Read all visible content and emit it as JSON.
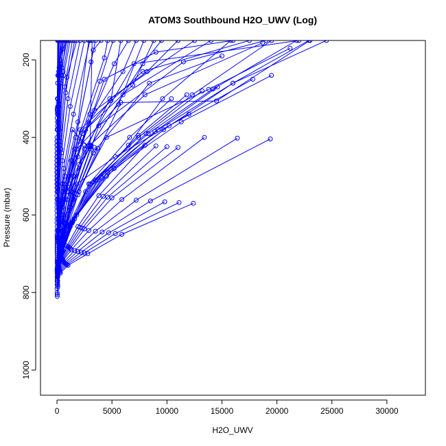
{
  "chart_data": {
    "type": "line",
    "title": "ATOM3 Southbound H2O_UWV (Log)",
    "xlabel": "H2O_UWV",
    "ylabel": "Pressure (mbar)",
    "xlim": [
      -1500,
      33500
    ],
    "ylim": [
      1065,
      150
    ],
    "y_inverted": true,
    "grid": false,
    "legend": "none",
    "x_ticks": [
      0,
      5000,
      10000,
      15000,
      20000,
      25000,
      30000
    ],
    "y_ticks": [
      200,
      400,
      600,
      800,
      1000
    ],
    "series_color": "#0000ff",
    "marker": "open-circle",
    "series": [
      {
        "x": [
          30,
          60,
          250,
          900,
          3000,
          8000,
          18700
        ],
        "y": [
          805,
          770,
          700,
          560,
          420,
          290,
          156
        ]
      },
      {
        "x": [
          20,
          150,
          600,
          1800,
          5300,
          12000
        ],
        "y": [
          810,
          740,
          640,
          520,
          450,
          340
        ]
      },
      {
        "x": [
          15,
          100,
          400,
          1500,
          4500,
          13800,
          21200
        ],
        "y": [
          800,
          745,
          670,
          560,
          400,
          276,
          170
        ]
      },
      {
        "x": [
          10,
          80,
          300,
          1100,
          3300,
          8400,
          15000
        ],
        "y": [
          790,
          750,
          690,
          590,
          440,
          260,
          190
        ]
      },
      {
        "x": [
          25,
          120,
          500,
          2000,
          5800,
          14500,
          23000
        ],
        "y": [
          780,
          730,
          650,
          540,
          310,
          306,
          150
        ]
      },
      {
        "x": [
          20,
          200,
          800,
          2500,
          7000,
          22000
        ],
        "y": [
          770,
          720,
          620,
          430,
          210,
          150
        ]
      },
      {
        "x": [
          30,
          300,
          1200,
          3800,
          11500,
          19000
        ],
        "y": [
          760,
          700,
          580,
          370,
          205,
          150
        ]
      },
      {
        "x": [
          40,
          250,
          700,
          2100,
          7800,
          17500
        ],
        "y": [
          750,
          680,
          560,
          380,
          230,
          150
        ]
      },
      {
        "x": [
          35,
          180,
          600,
          1900,
          4300,
          9000,
          16000
        ],
        "y": [
          755,
          710,
          600,
          450,
          250,
          180,
          150
        ]
      },
      {
        "x": [
          50,
          400,
          1500,
          4800,
          12500
        ],
        "y": [
          745,
          660,
          500,
          300,
          150
        ]
      },
      {
        "x": [
          60,
          500,
          2000,
          6000,
          14000
        ],
        "y": [
          740,
          640,
          470,
          290,
          150
        ]
      },
      {
        "x": [
          45,
          350,
          1200,
          3000,
          8200,
          11000
        ],
        "y": [
          730,
          650,
          520,
          340,
          230,
          150
        ]
      },
      {
        "x": [
          20,
          150,
          900,
          3100,
          7800,
          9500
        ],
        "y": [
          725,
          660,
          540,
          420,
          210,
          150
        ]
      },
      {
        "x": [
          30,
          120,
          600,
          2600,
          6900,
          8800
        ],
        "y": [
          720,
          670,
          560,
          380,
          265,
          150
        ]
      },
      {
        "x": [
          25,
          100,
          500,
          1800,
          5600,
          7900
        ],
        "y": [
          715,
          660,
          580,
          430,
          315,
          150
        ]
      },
      {
        "x": [
          35,
          200,
          800,
          2900,
          6000,
          7200
        ],
        "y": [
          710,
          640,
          530,
          360,
          230,
          150
        ]
      },
      {
        "x": [
          40,
          250,
          1100,
          3400,
          5200,
          6500
        ],
        "y": [
          705,
          620,
          500,
          330,
          210,
          150
        ]
      },
      {
        "x": [
          30,
          180,
          700,
          2300,
          4900,
          5800
        ],
        "y": [
          700,
          630,
          520,
          390,
          305,
          150
        ]
      },
      {
        "x": [
          25,
          150,
          600,
          2000,
          3900,
          5100
        ],
        "y": [
          695,
          640,
          560,
          410,
          255,
          150
        ]
      },
      {
        "x": [
          20,
          120,
          450,
          1600,
          4300,
          4600
        ],
        "y": [
          690,
          650,
          580,
          430,
          195,
          150
        ]
      },
      {
        "x": [
          15,
          100,
          400,
          1300,
          3300,
          4000
        ],
        "y": [
          685,
          640,
          570,
          460,
          175,
          150
        ]
      },
      {
        "x": [
          25,
          160,
          550,
          1700,
          3100,
          3500
        ],
        "y": [
          680,
          620,
          540,
          400,
          205,
          150
        ]
      },
      {
        "x": [
          20,
          130,
          500,
          1400,
          3000,
          3200
        ],
        "y": [
          675,
          610,
          520,
          380,
          430,
          150
        ]
      },
      {
        "x": [
          30,
          200,
          700,
          1900,
          2900
        ],
        "y": [
          670,
          600,
          500,
          360,
          150
        ]
      },
      {
        "x": [
          25,
          180,
          600,
          1500,
          3000
        ],
        "y": [
          665,
          590,
          480,
          340,
          150
        ]
      },
      {
        "x": [
          20,
          150,
          500,
          1200,
          2500
        ],
        "y": [
          660,
          580,
          460,
          320,
          150
        ]
      },
      {
        "x": [
          15,
          120,
          400,
          1000,
          2100
        ],
        "y": [
          655,
          570,
          440,
          300,
          150
        ]
      },
      {
        "x": [
          10,
          100,
          350,
          900,
          1800
        ],
        "y": [
          650,
          560,
          430,
          245,
          150
        ]
      },
      {
        "x": [
          10,
          90,
          300,
          800,
          1600
        ],
        "y": [
          640,
          540,
          420,
          285,
          150
        ]
      },
      {
        "x": [
          15,
          80,
          250,
          700,
          1400
        ],
        "y": [
          630,
          530,
          410,
          270,
          150
        ]
      },
      {
        "x": [
          10,
          70,
          220,
          600,
          1200
        ],
        "y": [
          620,
          520,
          400,
          240,
          150
        ]
      },
      {
        "x": [
          10,
          60,
          200,
          550,
          1050
        ],
        "y": [
          610,
          510,
          380,
          230,
          150
        ]
      },
      {
        "x": [
          10,
          50,
          180,
          500,
          1000
        ],
        "y": [
          600,
          500,
          370,
          172,
          150
        ]
      },
      {
        "x": [
          5,
          40,
          150,
          450,
          900
        ],
        "y": [
          590,
          490,
          360,
          220,
          150
        ]
      },
      {
        "x": [
          5,
          30,
          120,
          400,
          800
        ],
        "y": [
          580,
          480,
          340,
          240,
          150
        ]
      },
      {
        "x": [
          5,
          30,
          100,
          350,
          700
        ],
        "y": [
          570,
          470,
          330,
          210,
          150
        ]
      },
      {
        "x": [
          5,
          25,
          80,
          300,
          600
        ],
        "y": [
          560,
          460,
          320,
          200,
          150
        ]
      },
      {
        "x": [
          5,
          20,
          70,
          250,
          500
        ],
        "y": [
          550,
          450,
          320,
          210,
          150
        ]
      },
      {
        "x": [
          5,
          20,
          60,
          200,
          400
        ],
        "y": [
          540,
          440,
          330,
          220,
          150
        ]
      },
      {
        "x": [
          5,
          15,
          50,
          160,
          300
        ],
        "y": [
          530,
          430,
          335,
          230,
          150
        ]
      },
      {
        "x": [
          0,
          10,
          40,
          120,
          200
        ],
        "y": [
          520,
          420,
          340,
          240,
          150
        ]
      },
      {
        "x": [
          0,
          10,
          30,
          80,
          150
        ],
        "y": [
          510,
          410,
          325,
          240,
          150
        ]
      },
      {
        "x": [
          0,
          10,
          20,
          60,
          100
        ],
        "y": [
          500,
          420,
          350,
          260,
          150
        ]
      },
      {
        "x": [
          0,
          5,
          15,
          40,
          80
        ],
        "y": [
          490,
          440,
          380,
          300,
          150
        ]
      },
      {
        "x": [
          0,
          5,
          10,
          30,
          60
        ],
        "y": [
          480,
          450,
          400,
          330,
          150
        ]
      },
      {
        "x": [
          20,
          200,
          900,
          2600,
          6500,
          9600,
          15800
        ],
        "y": [
          760,
          720,
          650,
          540,
          420,
          300,
          150
        ]
      },
      {
        "x": [
          30,
          250,
          1000,
          3000,
          7400,
          12300,
          19500
        ],
        "y": [
          765,
          715,
          640,
          520,
          400,
          290,
          150
        ]
      },
      {
        "x": [
          40,
          300,
          1200,
          3500,
          8300,
          14200,
          21800
        ],
        "y": [
          770,
          710,
          630,
          510,
          390,
          275,
          150
        ]
      },
      {
        "x": [
          50,
          350,
          1400,
          4000,
          9200,
          16000,
          24500
        ],
        "y": [
          775,
          705,
          620,
          500,
          380,
          260,
          150
        ]
      },
      {
        "x": [
          60,
          400,
          1600,
          4600,
          10200,
          17800
        ],
        "y": [
          780,
          700,
          610,
          490,
          370,
          250
        ]
      },
      {
        "x": [
          70,
          450,
          1800,
          5200,
          11300,
          19500
        ],
        "y": [
          785,
          695,
          600,
          480,
          360,
          240
        ]
      },
      {
        "x": [
          35,
          300,
          1000,
          2900,
          6600,
          10400
        ],
        "y": [
          750,
          700,
          630,
          520,
          400,
          300
        ]
      },
      {
        "x": [
          45,
          350,
          1150,
          3300,
          7400,
          11800
        ],
        "y": [
          752,
          698,
          625,
          515,
          395,
          290
        ]
      },
      {
        "x": [
          55,
          420,
          1300,
          3700,
          8100,
          13200
        ],
        "y": [
          754,
          696,
          620,
          510,
          390,
          280
        ]
      },
      {
        "x": [
          65,
          500,
          1450,
          4100,
          8900,
          14600
        ],
        "y": [
          756,
          694,
          615,
          505,
          385,
          270
        ]
      },
      {
        "x": [
          75,
          580,
          1600,
          4500,
          9700,
          16000,
          22900
        ],
        "y": [
          758,
          692,
          610,
          500,
          380,
          260,
          150
        ]
      },
      {
        "x": [
          20,
          150,
          500,
          1300,
          2900,
          5900,
          13400
        ],
        "y": [
          745,
          735,
          720,
          690,
          640,
          560,
          400
        ]
      },
      {
        "x": [
          30,
          180,
          600,
          1600,
          3500,
          7200,
          16400
        ],
        "y": [
          748,
          738,
          722,
          692,
          642,
          562,
          402
        ]
      },
      {
        "x": [
          40,
          210,
          700,
          1900,
          4100,
          8500,
          19400
        ],
        "y": [
          751,
          741,
          724,
          694,
          644,
          564,
          404
        ]
      },
      {
        "x": [
          50,
          240,
          800,
          2200,
          4700,
          9800
        ],
        "y": [
          754,
          744,
          726,
          696,
          646,
          566
        ]
      },
      {
        "x": [
          60,
          270,
          900,
          2500,
          5300,
          11100
        ],
        "y": [
          757,
          747,
          728,
          698,
          648,
          568
        ]
      },
      {
        "x": [
          70,
          300,
          1000,
          2800,
          5900,
          12400
        ],
        "y": [
          760,
          750,
          730,
          700,
          650,
          570
        ]
      },
      {
        "x": [
          10,
          120,
          380,
          900,
          1900,
          3800,
          8000
        ],
        "y": [
          740,
          730,
          710,
          680,
          630,
          550,
          420
        ]
      },
      {
        "x": [
          15,
          140,
          430,
          1000,
          2100,
          4200,
          9000
        ],
        "y": [
          742,
          732,
          712,
          682,
          632,
          552,
          422
        ]
      },
      {
        "x": [
          20,
          160,
          480,
          1100,
          2300,
          4600,
          10000
        ],
        "y": [
          744,
          734,
          714,
          684,
          634,
          554,
          424
        ]
      },
      {
        "x": [
          25,
          180,
          530,
          1200,
          2500,
          5000,
          11000
        ],
        "y": [
          746,
          736,
          716,
          686,
          636,
          556,
          426
        ]
      },
      {
        "x": [
          30,
          90,
          200,
          380,
          700,
          1300,
          2500
        ],
        "y": [
          735,
          720,
          700,
          670,
          620,
          540,
          420
        ]
      },
      {
        "x": [
          35,
          100,
          220,
          420,
          780,
          1450,
          2800
        ],
        "y": [
          737,
          722,
          702,
          672,
          622,
          542,
          422
        ]
      },
      {
        "x": [
          40,
          110,
          240,
          460,
          860,
          1600,
          3100
        ],
        "y": [
          739,
          724,
          704,
          674,
          624,
          544,
          424
        ]
      },
      {
        "x": [
          45,
          120,
          260,
          500,
          940,
          1750,
          3400
        ],
        "y": [
          741,
          726,
          706,
          676,
          626,
          546,
          426
        ]
      },
      {
        "x": [
          50,
          130,
          280,
          540,
          1020,
          1900,
          3700
        ],
        "y": [
          743,
          728,
          708,
          678,
          628,
          548,
          428
        ]
      },
      {
        "x": [
          0,
          20,
          60,
          150,
          300
        ],
        "y": [
          470,
          430,
          380,
          320,
          260
        ]
      },
      {
        "x": [
          0,
          15,
          50,
          120,
          250
        ],
        "y": [
          460,
          420,
          370,
          310,
          250
        ]
      },
      {
        "x": [
          0,
          10,
          40,
          100,
          200
        ],
        "y": [
          450,
          410,
          360,
          300,
          240
        ]
      }
    ]
  }
}
